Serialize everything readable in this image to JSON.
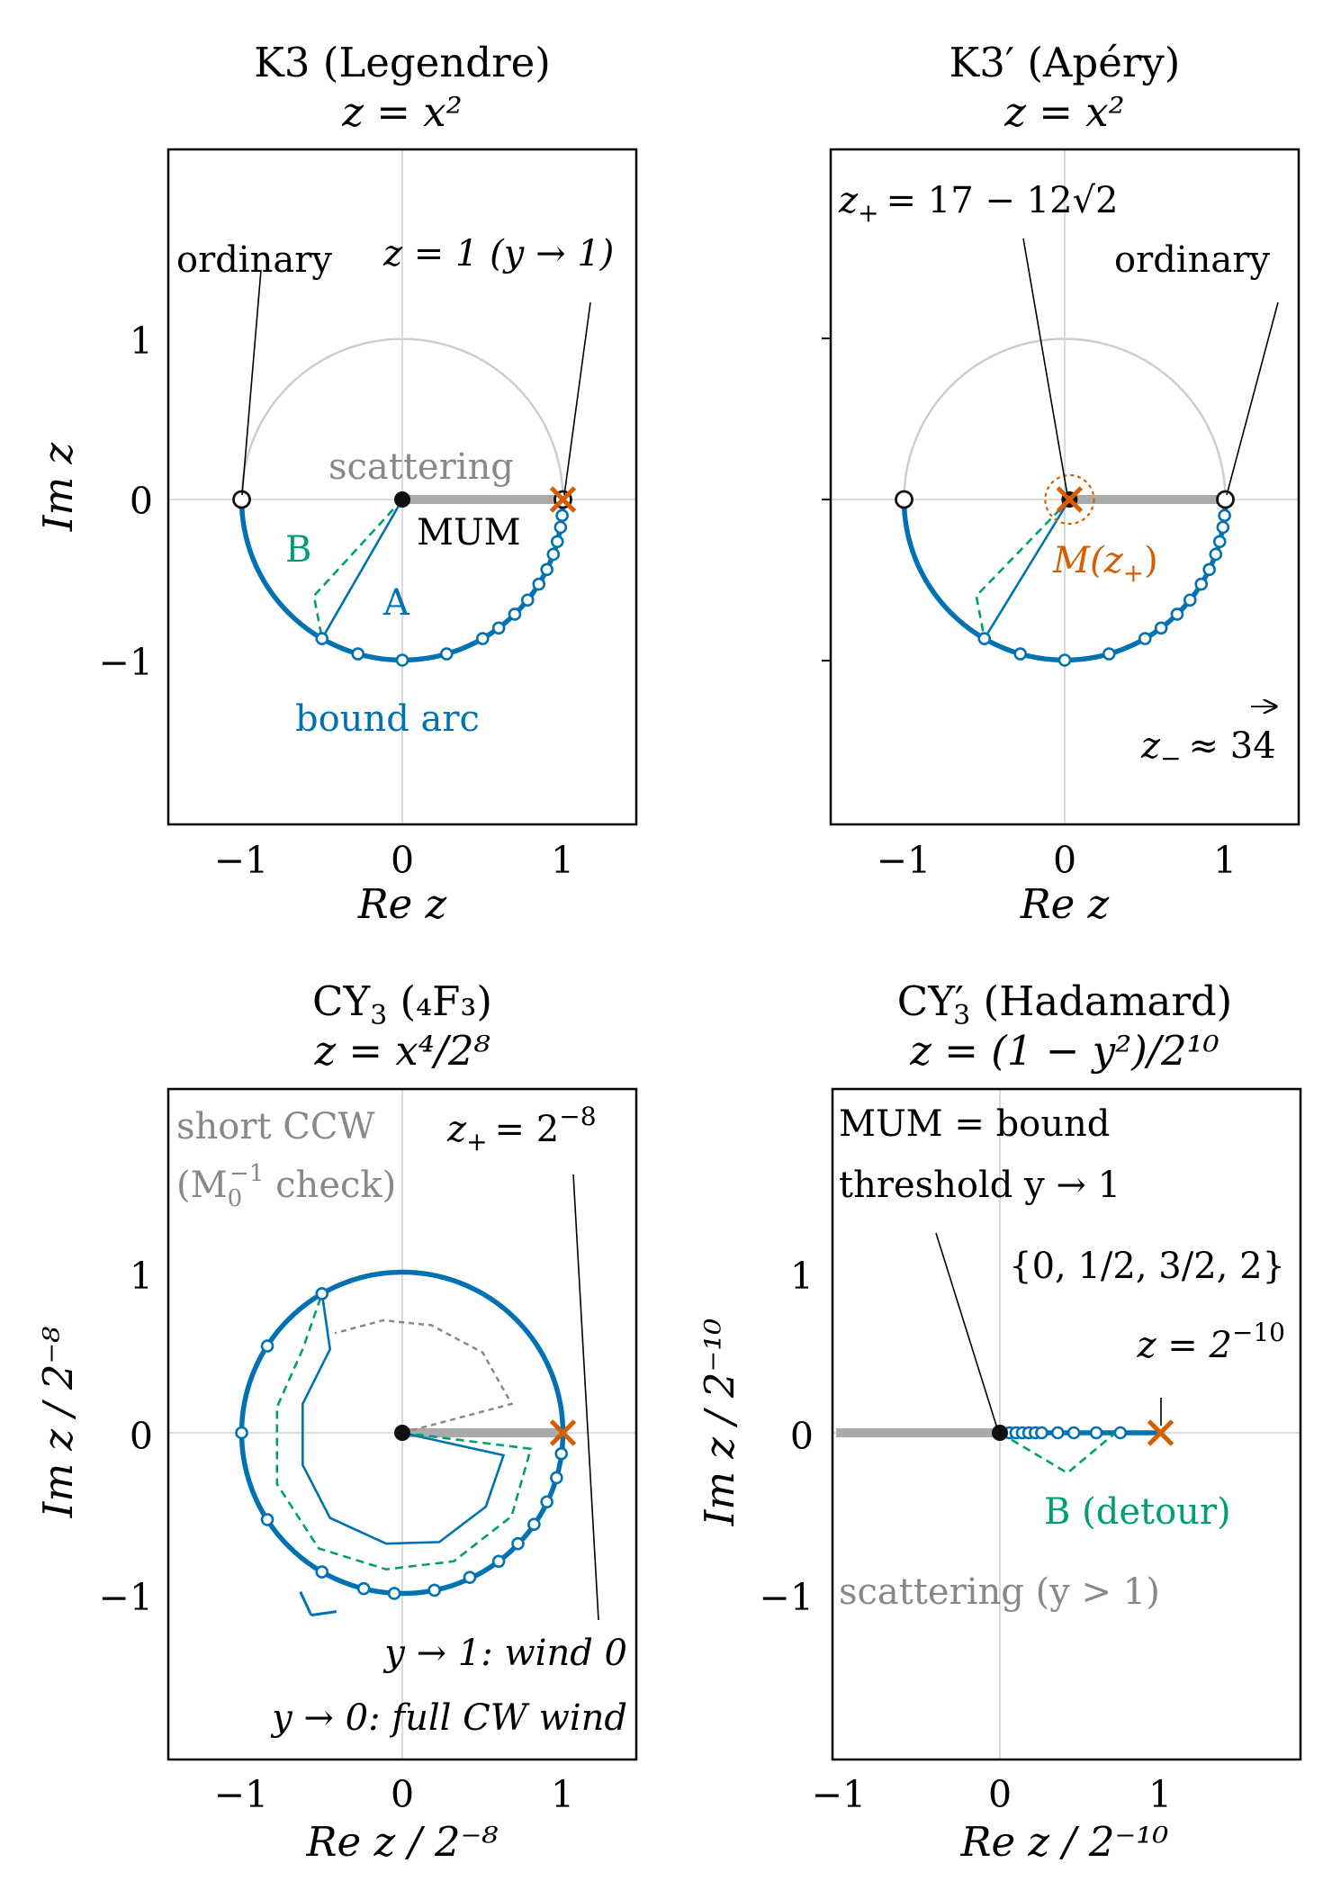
{
  "figure": {
    "colors": {
      "bound": "#0072B2",
      "path_b": "#009E73",
      "special_point": "#D55E00",
      "scattering": "#aaaaaa",
      "ccw_check": "#888888",
      "unit_circle": "#cccccc"
    }
  },
  "chart_data": [
    {
      "id": "k3",
      "type": "scatter",
      "title": "K3 (Legendre)",
      "subtitle": "z = x²",
      "xlabel": "Re z",
      "ylabel": "Im z",
      "xlim": [
        -1.45,
        1.45
      ],
      "ylim": [
        -2.0,
        2.2
      ],
      "xticks": [
        "−1",
        "0",
        "1"
      ],
      "yticks": [
        "1",
        "0",
        "−1"
      ],
      "grid": "axes lines at x=0 and y=0",
      "unit_upper_semicircle": true,
      "bound_arc": {
        "from_deg": 180,
        "to_deg": 360
      },
      "scattering_segment": [
        [
          0,
          0
        ],
        [
          1,
          0
        ]
      ],
      "sample_points": [
        [
          -0.5,
          -0.866
        ],
        [
          -0.276,
          -0.961
        ],
        [
          0.0,
          -1.0
        ],
        [
          0.276,
          -0.961
        ],
        [
          0.5,
          -0.866
        ],
        [
          0.6,
          -0.8
        ],
        [
          0.7,
          -0.714
        ],
        [
          0.78,
          -0.626
        ],
        [
          0.85,
          -0.527
        ],
        [
          0.9,
          -0.436
        ],
        [
          0.94,
          -0.341
        ],
        [
          0.965,
          -0.262
        ],
        [
          0.985,
          -0.173
        ],
        [
          0.995,
          -0.1
        ]
      ],
      "special_points": {
        "open": [
          [
            -1,
            0
          ],
          [
            1,
            0
          ]
        ],
        "mum": [
          0,
          0
        ],
        "x_mark": [
          1,
          0
        ]
      },
      "path_A": [
        [
          0,
          0
        ],
        [
          -0.5,
          -0.866
        ]
      ],
      "path_B": [
        [
          0,
          0
        ],
        [
          -0.55,
          -0.6
        ],
        [
          -0.5,
          -0.866
        ]
      ],
      "annotations": {
        "ordinary": "ordinary",
        "z1": "z = 1 (y → 1)",
        "scattering": "scattering",
        "mum": "MUM",
        "a": "A",
        "b": "B",
        "bound_arc": "bound arc"
      }
    },
    {
      "id": "k3prime",
      "type": "scatter",
      "title": "K3′ (Apéry)",
      "subtitle": "z = x²",
      "xlabel": "Re z",
      "ylabel": "",
      "xlim": [
        -1.45,
        1.45
      ],
      "ylim": [
        -2.0,
        2.2
      ],
      "xticks": [
        "−1",
        "0",
        "1"
      ],
      "yticks": [],
      "grid": "axes lines at x=0 and y=0",
      "unit_upper_semicircle": true,
      "bound_arc": {
        "from_deg": 180,
        "to_deg": 360
      },
      "scattering_segment": [
        [
          0,
          0
        ],
        [
          1,
          0
        ]
      ],
      "sample_points": [
        [
          -0.5,
          -0.866
        ],
        [
          -0.276,
          -0.961
        ],
        [
          0.0,
          -1.0
        ],
        [
          0.276,
          -0.961
        ],
        [
          0.5,
          -0.866
        ],
        [
          0.6,
          -0.8
        ],
        [
          0.7,
          -0.714
        ],
        [
          0.78,
          -0.626
        ],
        [
          0.85,
          -0.527
        ],
        [
          0.9,
          -0.436
        ],
        [
          0.94,
          -0.341
        ],
        [
          0.965,
          -0.262
        ],
        [
          0.985,
          -0.173
        ],
        [
          0.995,
          -0.1
        ]
      ],
      "special_points": {
        "open": [
          [
            -1,
            0
          ],
          [
            1,
            0
          ]
        ],
        "mum": [
          0.03,
          0
        ],
        "x_mark": [
          0.03,
          0
        ]
      },
      "path_A": [
        [
          0.03,
          0
        ],
        [
          -0.5,
          -0.866
        ]
      ],
      "path_B": [
        [
          0.03,
          0
        ],
        [
          -0.55,
          -0.6
        ],
        [
          -0.5,
          -0.866
        ]
      ],
      "annotations": {
        "zplus_prefix": "z",
        "zplus_sub": "+",
        "zplus_body": "= 17 − 12√2",
        "ordinary": "ordinary",
        "m_zplus": "M(z",
        "m_zplus_sub": "+",
        "m_zplus_close": ")",
        "zminus": "z",
        "zminus_sub": "−",
        "zminus_val": "≈ 34"
      }
    },
    {
      "id": "cy3",
      "type": "scatter",
      "title": "CY",
      "title_sub": "3",
      "title_rest": " (₄F₃)",
      "subtitle": "z = x⁴/2⁸",
      "xlabel": "Re z / 2⁻⁸",
      "ylabel": "Im z / 2⁻⁸",
      "xlim": [
        -1.45,
        1.45
      ],
      "ylim": [
        -1.75,
        2.05
      ],
      "xticks": [
        "−1",
        "0",
        "1"
      ],
      "yticks": [
        "1",
        "0",
        "−1"
      ],
      "grid": "axes lines at x=0 and y=0",
      "full_circle": true,
      "scattering_segment": [
        [
          0,
          0
        ],
        [
          1,
          0
        ]
      ],
      "sample_points": [
        [
          -0.5,
          0.866
        ],
        [
          -0.84,
          0.54
        ],
        [
          -1.0,
          0.0
        ],
        [
          -0.84,
          -0.54
        ],
        [
          -0.5,
          -0.866
        ],
        [
          -0.24,
          -0.97
        ],
        [
          -0.05,
          -1.0
        ],
        [
          0.2,
          -0.98
        ],
        [
          0.42,
          -0.9
        ],
        [
          0.6,
          -0.8
        ],
        [
          0.72,
          -0.69
        ],
        [
          0.82,
          -0.57
        ],
        [
          0.9,
          -0.43
        ],
        [
          0.96,
          -0.28
        ],
        [
          0.99,
          -0.13
        ]
      ],
      "special_points": {
        "mum": [
          0,
          0
        ],
        "x_mark": [
          1,
          0
        ]
      },
      "path_A": [
        [
          0,
          0
        ],
        [
          0.63,
          -0.14
        ],
        [
          0.52,
          -0.46
        ],
        [
          0.23,
          -0.68
        ],
        [
          -0.1,
          -0.69
        ],
        [
          -0.45,
          -0.53
        ],
        [
          -0.62,
          -0.2
        ],
        [
          -0.62,
          0.18
        ],
        [
          -0.45,
          0.52
        ],
        [
          -0.5,
          0.866
        ]
      ],
      "path_B": [
        [
          0,
          0
        ],
        [
          0.8,
          -0.1
        ],
        [
          0.68,
          -0.52
        ],
        [
          0.32,
          -0.8
        ],
        [
          -0.1,
          -0.85
        ],
        [
          -0.52,
          -0.72
        ],
        [
          -0.78,
          -0.32
        ],
        [
          -0.78,
          0.16
        ],
        [
          -0.62,
          0.52
        ],
        [
          -0.5,
          0.866
        ]
      ],
      "path_ccw": [
        [
          0,
          0
        ],
        [
          0.68,
          0.18
        ],
        [
          0.5,
          0.5
        ],
        [
          0.18,
          0.67
        ],
        [
          -0.12,
          0.7
        ],
        [
          -0.42,
          0.62
        ]
      ],
      "annotations": {
        "short_ccw_1": "short CCW",
        "short_ccw_2": "(M",
        "short_ccw_sub": "0",
        "short_ccw_sup": "−1",
        "short_ccw_3": " check)",
        "zplus": "z",
        "zplus_sub": "+",
        "zplus_val": "= 2",
        "zplus_sup": "−8",
        "y1": "y → 1: wind 0",
        "y0": "y → 0: full CW wind"
      }
    },
    {
      "id": "cy3prime",
      "type": "scatter",
      "title": "CY′",
      "title_sub": "3",
      "title_rest": " (Hadamard)",
      "subtitle": "z = (1 − y²)/2¹⁰",
      "xlabel": "Re z / 2⁻¹⁰",
      "ylabel": "Im z / 2⁻¹⁰",
      "xlim": [
        -1.02,
        1.88
      ],
      "ylim": [
        -1.75,
        2.05
      ],
      "xticks": [
        "−1",
        "0",
        "1"
      ],
      "yticks": [
        "1",
        "0",
        "−1"
      ],
      "grid": "axes lines at x=0 and y=0",
      "scattering_segment": [
        [
          -1.02,
          0
        ],
        [
          0,
          0
        ]
      ],
      "bound_segment": [
        [
          0,
          0
        ],
        [
          1,
          0
        ]
      ],
      "sample_points": [
        [
          0.06,
          0
        ],
        [
          0.1,
          0
        ],
        [
          0.14,
          0
        ],
        [
          0.18,
          0
        ],
        [
          0.22,
          0
        ],
        [
          0.26,
          0
        ],
        [
          0.36,
          0
        ],
        [
          0.46,
          0
        ],
        [
          0.6,
          0
        ],
        [
          0.75,
          0
        ]
      ],
      "special_points": {
        "mum": [
          0,
          0
        ],
        "x_mark": [
          1,
          0
        ]
      },
      "path_B": [
        [
          0,
          0
        ],
        [
          0.42,
          -0.25
        ],
        [
          0.72,
          0
        ]
      ],
      "annotations": {
        "mum_eq": "MUM = bound",
        "threshold": "threshold y → 1",
        "set": "{0, 1/2, 3/2, 2}",
        "z": "z = 2",
        "z_sup": "−10",
        "b_detour": "B (detour)",
        "scattering": "scattering (y > 1)"
      }
    }
  ]
}
